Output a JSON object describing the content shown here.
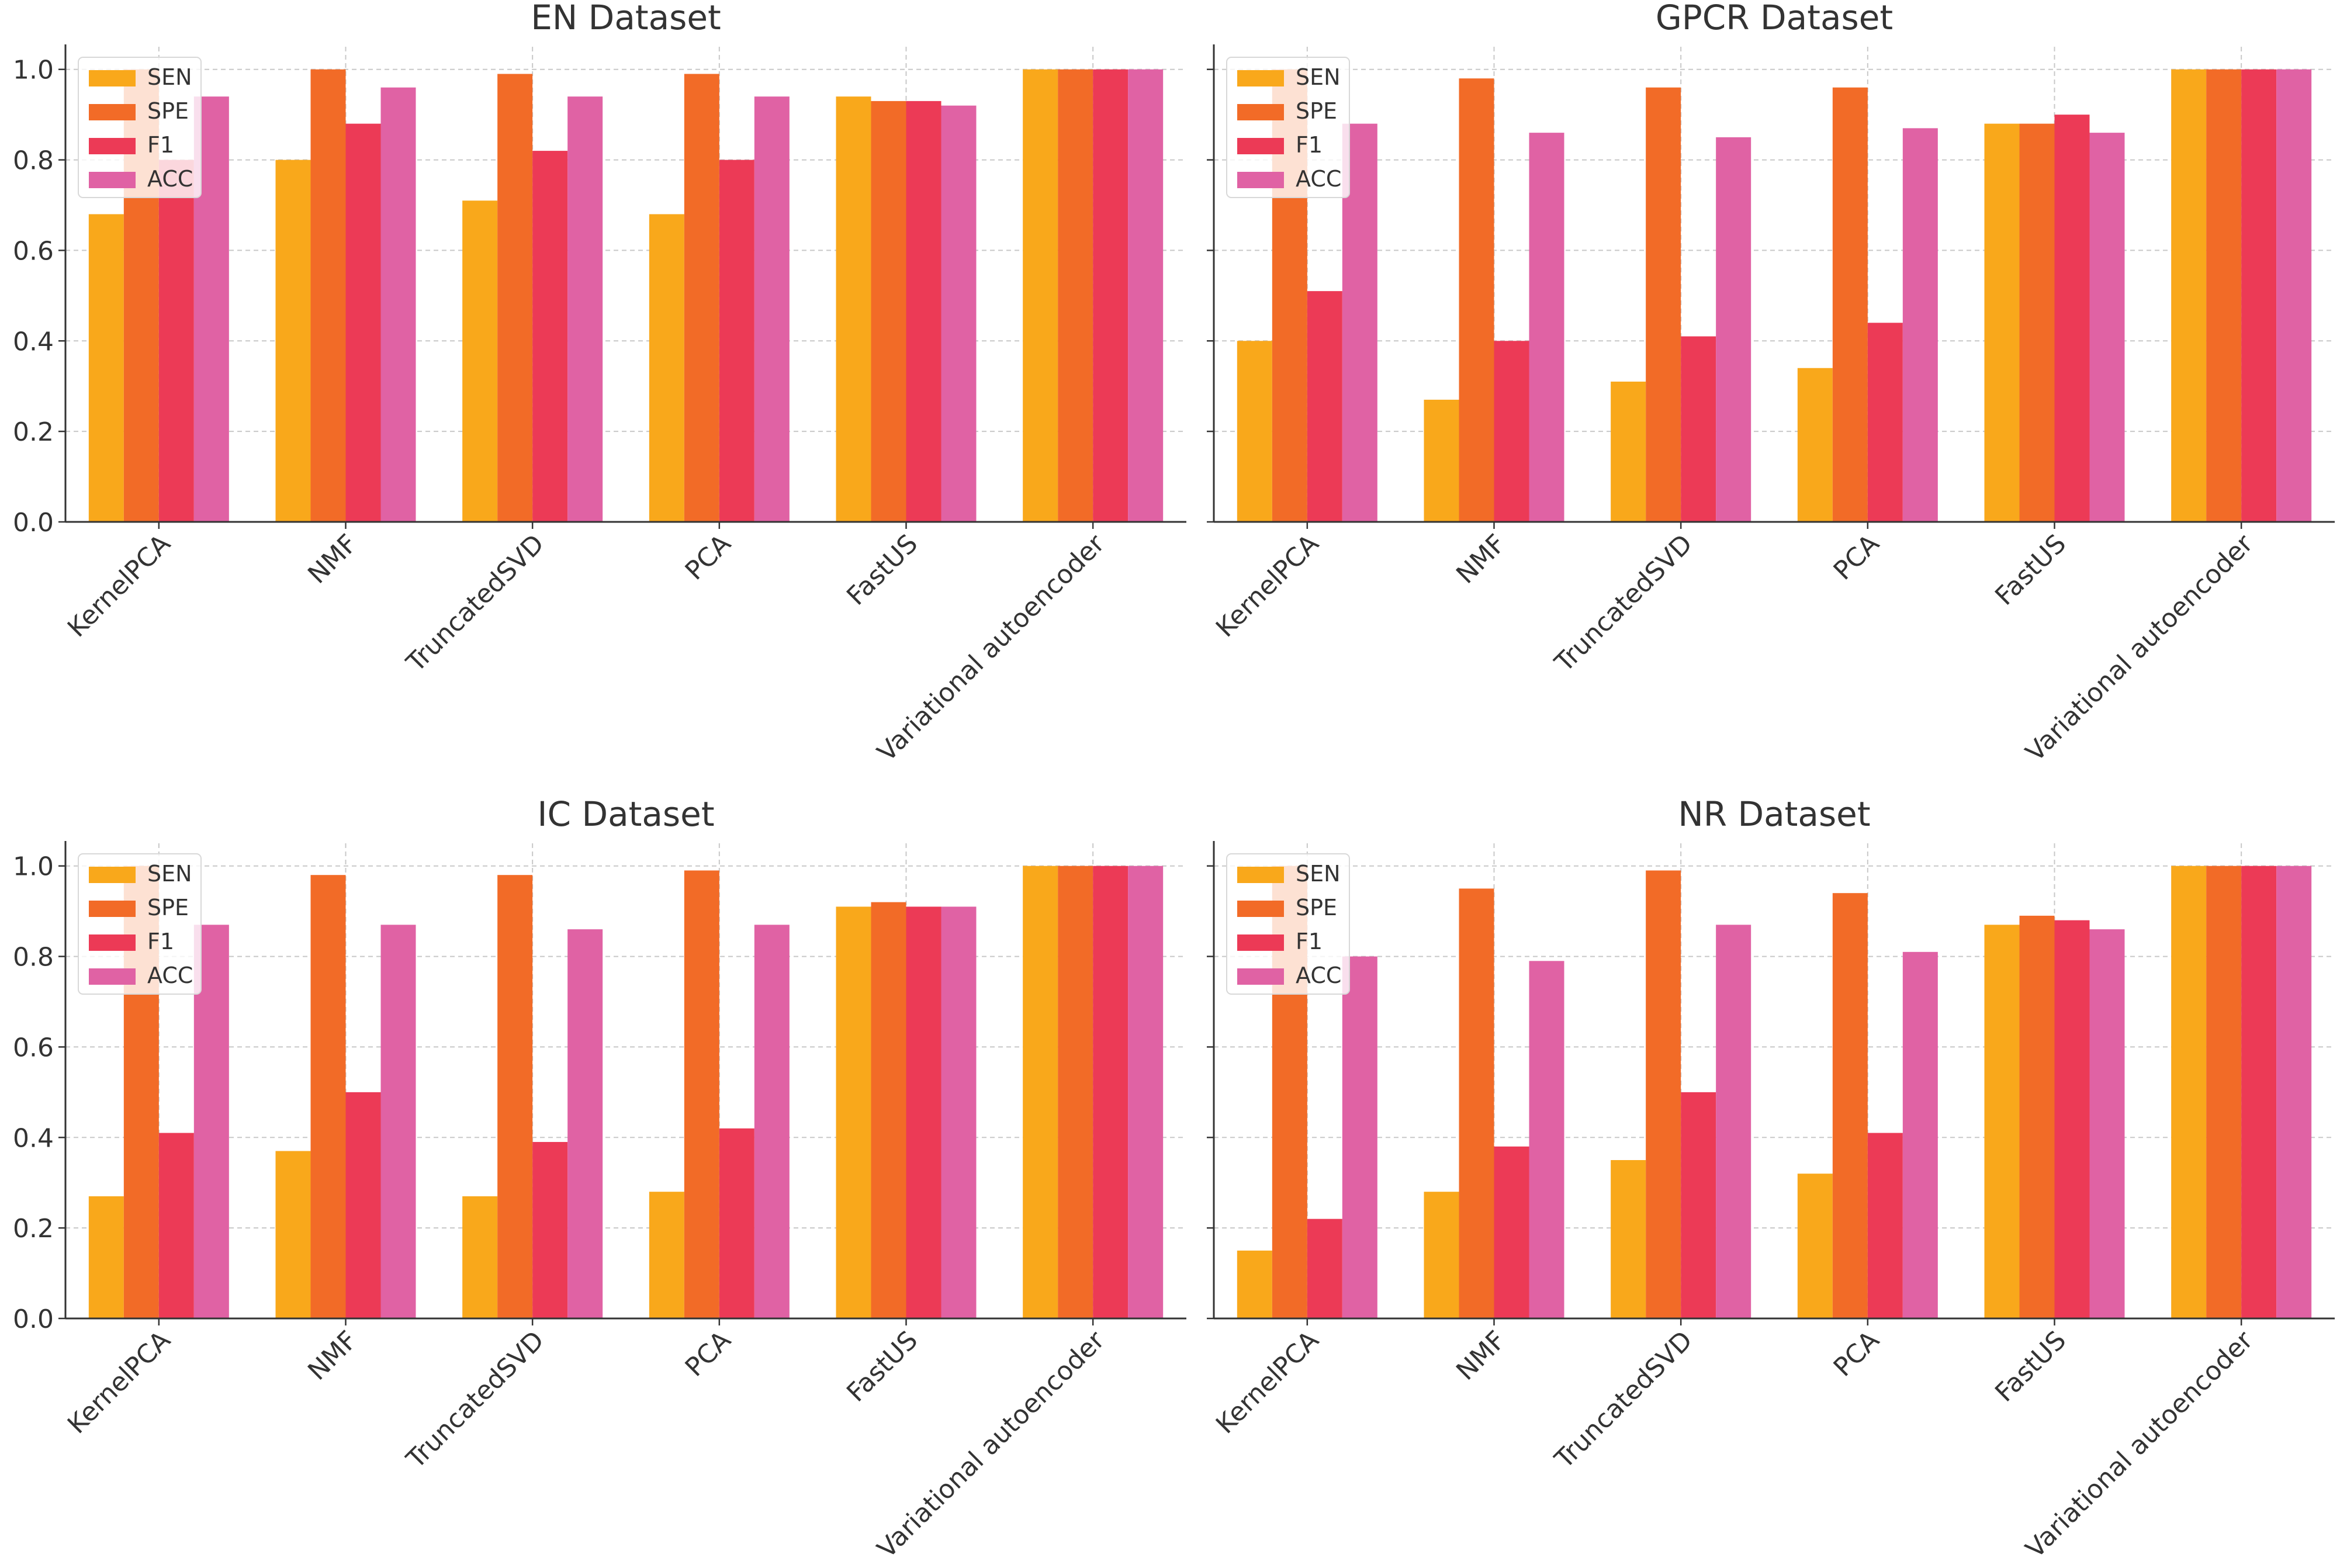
{
  "chart_data": [
    {
      "type": "bar",
      "title": "EN Dataset",
      "xlabel": "",
      "ylabel": "",
      "ylim": [
        0,
        1.05
      ],
      "yticks": [
        "0.0",
        "0.2",
        "0.4",
        "0.6",
        "0.8",
        "1.0"
      ],
      "categories": [
        "KernelPCA",
        "NMF",
        "TruncatedSVD",
        "PCA",
        "FastUS",
        "Variational autoencoder"
      ],
      "series": [
        {
          "name": "SEN",
          "color": "#F9A81B",
          "values": [
            0.68,
            0.8,
            0.71,
            0.68,
            0.94,
            1.0
          ]
        },
        {
          "name": "SPE",
          "color": "#F26B27",
          "values": [
            1.0,
            1.0,
            0.99,
            0.99,
            0.93,
            1.0
          ]
        },
        {
          "name": "F1",
          "color": "#EC3A56",
          "values": [
            0.8,
            0.88,
            0.82,
            0.8,
            0.93,
            1.0
          ]
        },
        {
          "name": "ACC",
          "color": "#E062A4",
          "values": [
            0.94,
            0.96,
            0.94,
            0.94,
            0.92,
            1.0
          ]
        }
      ],
      "legend": "top-left",
      "grid": true
    },
    {
      "type": "bar",
      "title": "GPCR Dataset",
      "xlabel": "",
      "ylabel": "",
      "ylim": [
        0,
        1.05
      ],
      "yticks": [
        "",
        "",
        "",
        "",
        "",
        ""
      ],
      "categories": [
        "KernelPCA",
        "NMF",
        "TruncatedSVD",
        "PCA",
        "FastUS",
        "Variational autoencoder"
      ],
      "series": [
        {
          "name": "SEN",
          "color": "#F9A81B",
          "values": [
            0.4,
            0.27,
            0.31,
            0.34,
            0.88,
            1.0
          ]
        },
        {
          "name": "SPE",
          "color": "#F26B27",
          "values": [
            1.0,
            0.98,
            0.96,
            0.96,
            0.88,
            1.0
          ]
        },
        {
          "name": "F1",
          "color": "#EC3A56",
          "values": [
            0.51,
            0.4,
            0.41,
            0.44,
            0.9,
            1.0
          ]
        },
        {
          "name": "ACC",
          "color": "#E062A4",
          "values": [
            0.88,
            0.86,
            0.85,
            0.87,
            0.86,
            1.0
          ]
        }
      ],
      "legend": "top-left",
      "grid": true
    },
    {
      "type": "bar",
      "title": "IC Dataset",
      "xlabel": "",
      "ylabel": "",
      "ylim": [
        0,
        1.05
      ],
      "yticks": [
        "0.0",
        "0.2",
        "0.4",
        "0.6",
        "0.8",
        "1.0"
      ],
      "categories": [
        "KernelPCA",
        "NMF",
        "TruncatedSVD",
        "PCA",
        "FastUS",
        "Variational autoencoder"
      ],
      "series": [
        {
          "name": "SEN",
          "color": "#F9A81B",
          "values": [
            0.27,
            0.37,
            0.27,
            0.28,
            0.91,
            1.0
          ]
        },
        {
          "name": "SPE",
          "color": "#F26B27",
          "values": [
            1.0,
            0.98,
            0.98,
            0.99,
            0.92,
            1.0
          ]
        },
        {
          "name": "F1",
          "color": "#EC3A56",
          "values": [
            0.41,
            0.5,
            0.39,
            0.42,
            0.91,
            1.0
          ]
        },
        {
          "name": "ACC",
          "color": "#E062A4",
          "values": [
            0.87,
            0.87,
            0.86,
            0.87,
            0.91,
            1.0
          ]
        }
      ],
      "legend": "top-left",
      "grid": true
    },
    {
      "type": "bar",
      "title": "NR Dataset",
      "xlabel": "",
      "ylabel": "",
      "ylim": [
        0,
        1.05
      ],
      "yticks": [
        "",
        "",
        "",
        "",
        "",
        ""
      ],
      "categories": [
        "KernelPCA",
        "NMF",
        "TruncatedSVD",
        "PCA",
        "FastUS",
        "Variational autoencoder"
      ],
      "series": [
        {
          "name": "SEN",
          "color": "#F9A81B",
          "values": [
            0.15,
            0.28,
            0.35,
            0.32,
            0.87,
            1.0
          ]
        },
        {
          "name": "SPE",
          "color": "#F26B27",
          "values": [
            1.0,
            0.95,
            0.99,
            0.94,
            0.89,
            1.0
          ]
        },
        {
          "name": "F1",
          "color": "#EC3A56",
          "values": [
            0.22,
            0.38,
            0.5,
            0.41,
            0.88,
            1.0
          ]
        },
        {
          "name": "ACC",
          "color": "#E062A4",
          "values": [
            0.8,
            0.79,
            0.87,
            0.81,
            0.86,
            1.0
          ]
        }
      ],
      "legend": "top-left",
      "grid": true
    }
  ]
}
